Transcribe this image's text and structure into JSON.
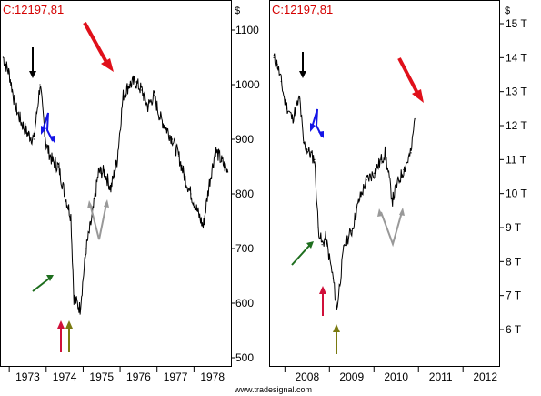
{
  "chart_data": [
    {
      "type": "line",
      "title": "C:12197,81",
      "unit": "$",
      "x_ticks": [
        "1973",
        "1974",
        "1975",
        "1976",
        "1977",
        "1978"
      ],
      "y_ticks": [
        "1100",
        "1000",
        "900",
        "800",
        "700",
        "600",
        "500"
      ],
      "ylim": [
        490,
        1160
      ],
      "x": [
        "1972-11",
        "1973-01",
        "1973-03",
        "1973-05",
        "1973-07",
        "1973-09",
        "1973-11",
        "1974-01",
        "1974-03",
        "1974-05",
        "1974-07",
        "1974-09",
        "1974-10",
        "1974-12",
        "1975-02",
        "1975-04",
        "1975-06",
        "1975-08",
        "1975-10",
        "1975-12",
        "1976-02",
        "1976-04",
        "1976-06",
        "1976-08",
        "1976-10",
        "1976-12",
        "1977-02",
        "1977-04",
        "1977-06",
        "1977-08",
        "1977-10",
        "1977-12",
        "1978-02",
        "1978-04",
        "1978-06",
        "1978-08",
        "1978-10",
        "1978-12"
      ],
      "values": [
        1050,
        1020,
        960,
        930,
        910,
        900,
        1000,
        890,
        860,
        850,
        800,
        760,
        610,
        590,
        700,
        760,
        840,
        840,
        810,
        860,
        980,
        1000,
        1005,
        990,
        960,
        980,
        940,
        920,
        900,
        870,
        830,
        800,
        770,
        740,
        820,
        880,
        860,
        840
      ],
      "grid": false,
      "legend": "none"
    },
    {
      "type": "line",
      "title": "C:12197,81",
      "unit": "$",
      "x_ticks": [
        "2008",
        "2009",
        "2010",
        "2011",
        "2012"
      ],
      "y_ticks": [
        "15 T",
        "14 T",
        "13 T",
        "12 T",
        "11 T",
        "10 T",
        "9 T",
        "8 T",
        "7 T",
        "6 T"
      ],
      "ylim": [
        5.3,
        15.4
      ],
      "x": [
        "2007-10",
        "2007-11",
        "2007-12",
        "2008-01",
        "2008-03",
        "2008-05",
        "2008-06",
        "2008-07",
        "2008-09",
        "2008-10",
        "2008-11",
        "2008-12",
        "2009-02",
        "2009-03",
        "2009-05",
        "2009-07",
        "2009-09",
        "2009-11",
        "2010-01",
        "2010-03",
        "2010-04",
        "2010-06",
        "2010-07",
        "2010-09",
        "2010-11",
        "2010-12"
      ],
      "values": [
        14.0,
        13.8,
        13.3,
        12.7,
        12.2,
        12.8,
        11.5,
        11.3,
        11.0,
        9.0,
        8.5,
        8.7,
        7.5,
        6.6,
        8.5,
        8.9,
        9.8,
        10.4,
        10.6,
        11.0,
        11.2,
        9.8,
        10.2,
        10.7,
        11.2,
        12.2
      ],
      "grid": false,
      "legend": "none"
    }
  ],
  "credit": "www.tradesignal.com",
  "colors": {
    "price": "#d40000",
    "red_arrow": "#e0101a",
    "black_arrow": "#000000",
    "blue_arrow": "#1414e6",
    "green_arrow": "#1e6e1e",
    "gray_arrow": "#999999",
    "crimson_arrow": "#d0103a",
    "olive_arrow": "#7a7a10"
  }
}
